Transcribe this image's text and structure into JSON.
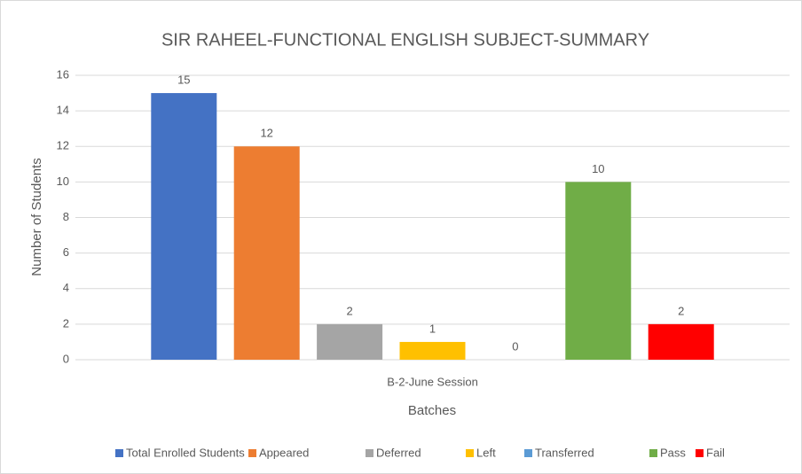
{
  "chart_data": {
    "type": "bar",
    "title": "SIR RAHEEL-FUNCTIONAL ENGLISH SUBJECT-SUMMARY",
    "x_label": "Batches",
    "y_label": "Number of Students",
    "categories": [
      "B-2-June Session"
    ],
    "series": [
      {
        "name": "Total Enrolled Students",
        "color": "#4472c4",
        "values": [
          15
        ]
      },
      {
        "name": "Appeared",
        "color": "#ed7d31",
        "values": [
          12
        ]
      },
      {
        "name": "Deferred",
        "color": "#a5a5a5",
        "values": [
          2
        ]
      },
      {
        "name": "Left",
        "color": "#ffc000",
        "values": [
          1
        ]
      },
      {
        "name": "Transferred",
        "color": "#5b9bd5",
        "values": [
          0
        ]
      },
      {
        "name": "Pass",
        "color": "#70ad47",
        "values": [
          10
        ]
      },
      {
        "name": "Fail",
        "color": "#ff0000",
        "values": [
          2
        ]
      }
    ],
    "ylim": [
      0,
      16
    ],
    "yticks": [
      0,
      2,
      4,
      6,
      8,
      10,
      12,
      14,
      16
    ],
    "grid": true,
    "legend": "bottom"
  }
}
